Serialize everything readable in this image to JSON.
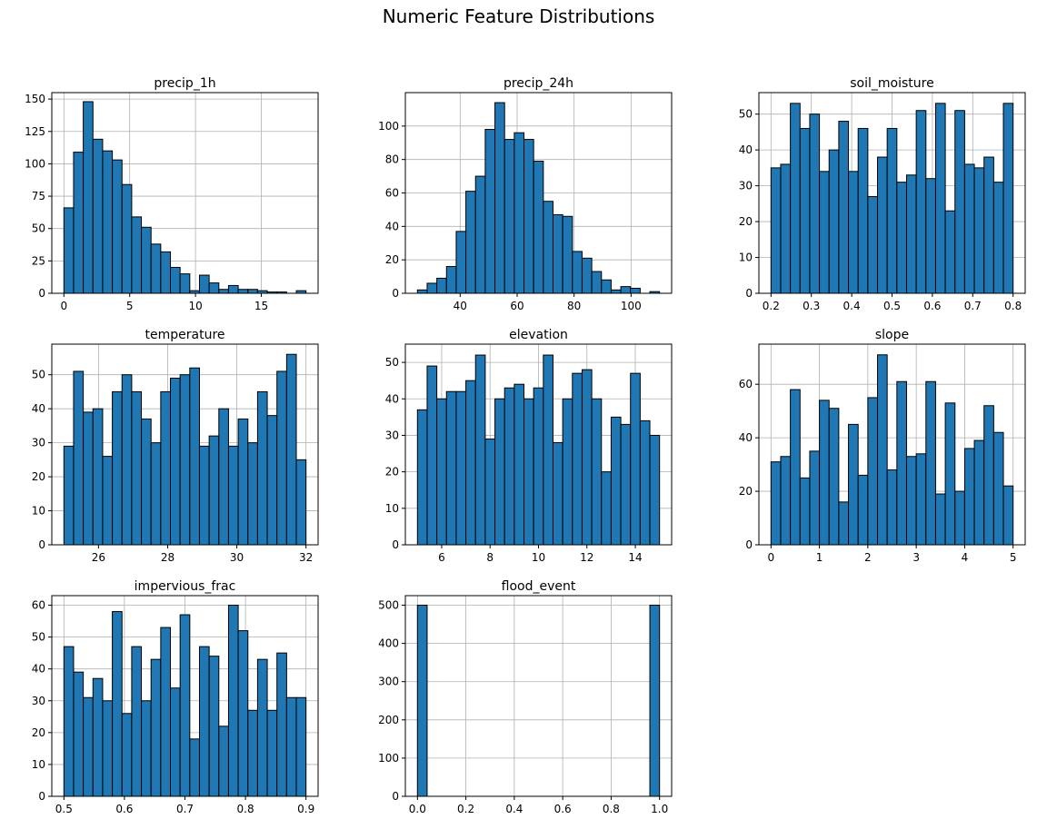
{
  "figure": {
    "title": "Numeric Feature Distributions",
    "bar_color": "#1f77b4",
    "edge_color": "#000000",
    "grid_color": "#b0b0b0"
  },
  "chart_data": [
    {
      "type": "bar",
      "title": "precip_1h",
      "xlabel": "",
      "ylabel": "",
      "bin_range": [
        0,
        18.4
      ],
      "bins": 25,
      "values": [
        66,
        109,
        148,
        119,
        110,
        103,
        84,
        59,
        51,
        38,
        32,
        20,
        15,
        2,
        14,
        8,
        3,
        6,
        3,
        3,
        2,
        1,
        1,
        0,
        2
      ],
      "xlim": [
        -0.92,
        19.32
      ],
      "ylim": [
        0,
        155
      ],
      "xticks": [
        0,
        5,
        10,
        15
      ],
      "yticks": [
        0,
        25,
        50,
        75,
        100,
        125,
        150
      ],
      "grid": true
    },
    {
      "type": "bar",
      "title": "precip_24h",
      "xlabel": "",
      "ylabel": "",
      "bin_range": [
        25,
        110
      ],
      "bins": 25,
      "values": [
        2,
        6,
        9,
        16,
        37,
        61,
        70,
        98,
        114,
        92,
        96,
        92,
        79,
        55,
        47,
        46,
        25,
        21,
        13,
        8,
        2,
        4,
        3,
        0,
        1
      ],
      "xlim": [
        20.75,
        114.25
      ],
      "ylim": [
        0,
        120
      ],
      "xticks": [
        40,
        60,
        80,
        100
      ],
      "yticks": [
        0,
        20,
        40,
        60,
        80,
        100
      ],
      "grid": true
    },
    {
      "type": "bar",
      "title": "soil_moisture",
      "xlabel": "",
      "ylabel": "",
      "bin_range": [
        0.2,
        0.8
      ],
      "bins": 25,
      "values": [
        35,
        36,
        53,
        46,
        50,
        34,
        40,
        48,
        34,
        46,
        27,
        38,
        46,
        31,
        33,
        51,
        32,
        53,
        23,
        51,
        36,
        35,
        38,
        31,
        53
      ],
      "xlim": [
        0.17,
        0.83
      ],
      "ylim": [
        0,
        56
      ],
      "xticks": [
        0.2,
        0.3,
        0.4,
        0.5,
        0.6,
        0.7,
        0.8
      ],
      "yticks": [
        0,
        10,
        20,
        30,
        40,
        50
      ],
      "grid": true
    },
    {
      "type": "bar",
      "title": "temperature",
      "xlabel": "",
      "ylabel": "",
      "bin_range": [
        25,
        32
      ],
      "bins": 25,
      "values": [
        29,
        51,
        39,
        40,
        26,
        45,
        50,
        45,
        37,
        30,
        45,
        49,
        50,
        52,
        29,
        32,
        40,
        29,
        37,
        30,
        45,
        38,
        51,
        56,
        25
      ],
      "xlim": [
        24.65,
        32.35
      ],
      "ylim": [
        0,
        59
      ],
      "xticks": [
        26,
        28,
        30,
        32
      ],
      "yticks": [
        0,
        10,
        20,
        30,
        40,
        50
      ],
      "grid": true
    },
    {
      "type": "bar",
      "title": "elevation",
      "xlabel": "",
      "ylabel": "",
      "bin_range": [
        5,
        15
      ],
      "bins": 25,
      "values": [
        37,
        49,
        40,
        42,
        42,
        45,
        52,
        29,
        40,
        43,
        44,
        40,
        43,
        52,
        28,
        40,
        47,
        48,
        40,
        20,
        35,
        33,
        47,
        34,
        30
      ],
      "xlim": [
        4.5,
        15.5
      ],
      "ylim": [
        0,
        55
      ],
      "xticks": [
        6,
        8,
        10,
        12,
        14
      ],
      "yticks": [
        0,
        10,
        20,
        30,
        40,
        50
      ],
      "grid": true
    },
    {
      "type": "bar",
      "title": "slope",
      "xlabel": "",
      "ylabel": "",
      "bin_range": [
        0,
        5
      ],
      "bins": 25,
      "values": [
        31,
        33,
        58,
        25,
        35,
        54,
        51,
        16,
        45,
        26,
        55,
        71,
        28,
        61,
        33,
        34,
        61,
        19,
        53,
        20,
        36,
        39,
        52,
        42,
        22
      ],
      "xlim": [
        -0.25,
        5.25
      ],
      "ylim": [
        0,
        75
      ],
      "xticks": [
        0,
        1,
        2,
        3,
        4,
        5
      ],
      "yticks": [
        0,
        20,
        40,
        60
      ],
      "grid": true
    },
    {
      "type": "bar",
      "title": "impervious_frac",
      "xlabel": "",
      "ylabel": "",
      "bin_range": [
        0.5,
        0.9
      ],
      "bins": 25,
      "values": [
        47,
        39,
        31,
        37,
        30,
        58,
        26,
        47,
        30,
        43,
        53,
        34,
        57,
        18,
        47,
        44,
        22,
        60,
        52,
        27,
        43,
        27,
        45,
        31,
        31
      ],
      "xlim": [
        0.48,
        0.92
      ],
      "ylim": [
        0,
        63
      ],
      "xticks": [
        0.5,
        0.6,
        0.7,
        0.8,
        0.9
      ],
      "yticks": [
        0,
        10,
        20,
        30,
        40,
        50,
        60
      ],
      "grid": true
    },
    {
      "type": "bar",
      "title": "flood_event",
      "xlabel": "",
      "ylabel": "",
      "bin_range": [
        0,
        1
      ],
      "bins": 25,
      "values": [
        500,
        0,
        0,
        0,
        0,
        0,
        0,
        0,
        0,
        0,
        0,
        0,
        0,
        0,
        0,
        0,
        0,
        0,
        0,
        0,
        0,
        0,
        0,
        0,
        500
      ],
      "xlim": [
        -0.05,
        1.05
      ],
      "ylim": [
        0,
        525
      ],
      "xticks": [
        0.0,
        0.2,
        0.4,
        0.6,
        0.8,
        1.0
      ],
      "yticks": [
        0,
        100,
        200,
        300,
        400,
        500
      ],
      "grid": true
    }
  ]
}
